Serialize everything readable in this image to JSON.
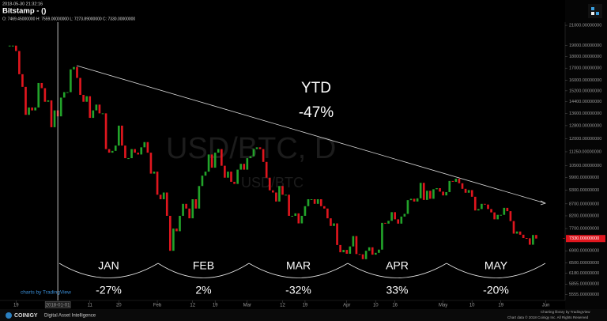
{
  "chart_data": {
    "type": "candlestick",
    "timestamp": "2018-05-30 21:32:16",
    "title": "Bitstamp -  ()",
    "ohlc_line": "O: 7469.45000000 H: 7559.00000000 L: 7273.89000000 C: 7330.00000000",
    "watermark": "USD/BTC, D",
    "watermark_small": "USD/BTC",
    "ytd_label": "YTD",
    "ytd_value": "-47%",
    "months": [
      {
        "label": "JAN",
        "change": "-27%"
      },
      {
        "label": "FEB",
        "change": "2%"
      },
      {
        "label": "MAR",
        "change": "-32%"
      },
      {
        "label": "APR",
        "change": "33%"
      },
      {
        "label": "MAY",
        "change": "-20%"
      }
    ],
    "last_price": {
      "value": 7330,
      "label": "7330.00000000"
    },
    "crosshair": {
      "value": 15,
      "label": "2018-01-01"
    },
    "up_color": "#22a32a",
    "down_color": "#e0161e",
    "log_scale": true,
    "values": [
      19000,
      19000,
      18500,
      16500,
      15500,
      13500,
      14000,
      13800,
      14000,
      15800,
      15400,
      14400,
      14500,
      12700,
      13800,
      13400,
      14700,
      15100,
      15100,
      16900,
      17100,
      16200,
      14900,
      14400,
      14800,
      13300,
      13800,
      14200,
      13600,
      13600,
      11400,
      11200,
      11300,
      11600,
      12800,
      11600,
      10900,
      10900,
      11400,
      11200,
      11100,
      11500,
      11800,
      11200,
      10100,
      10200,
      9100,
      8900,
      9200,
      8200,
      6900,
      7700,
      7600,
      8200,
      8700,
      8500,
      8100,
      8900,
      8500,
      9500,
      10000,
      10200,
      11100,
      10400,
      11200,
      11400,
      10500,
      9900,
      10200,
      9700,
      9600,
      10300,
      10600,
      10300,
      10900,
      11000,
      11400,
      11500,
      11400,
      10700,
      9900,
      9300,
      9200,
      8800,
      9500,
      9100,
      9100,
      8200,
      8200,
      8300,
      7900,
      8200,
      8600,
      8900,
      8900,
      8700,
      8900,
      8600,
      8500,
      8100,
      7800,
      7900,
      7100,
      6850,
      6930,
      6800,
      7050,
      7420,
      6790,
      6780,
      6620,
      6900,
      7020,
      6770,
      6830,
      6940,
      7920,
      7890,
      8000,
      8350,
      8060,
      7890,
      8170,
      8280,
      8860,
      8920,
      8800,
      8940,
      9650,
      8870,
      9280,
      8920,
      9350,
      9400,
      9240,
      9070,
      9220,
      9740,
      9700,
      9850,
      9630,
      9370,
      9190,
      9310,
      9010,
      8420,
      8480,
      8700,
      8670,
      8480,
      8340,
      8060,
      8240,
      8240,
      8530,
      8390,
      7990,
      7510,
      7590,
      7470,
      7350,
      7340,
      7110,
      7460,
      7330
    ],
    "xlim": [
      -3,
      173
    ],
    "xticks": [
      {
        "value": 2,
        "label": "19"
      },
      {
        "value": 25,
        "label": "11"
      },
      {
        "value": 34,
        "label": "20"
      },
      {
        "value": 46,
        "label": "Feb"
      },
      {
        "value": 57,
        "label": "12"
      },
      {
        "value": 64,
        "label": "19"
      },
      {
        "value": 74,
        "label": "Mar"
      },
      {
        "value": 85,
        "label": "12"
      },
      {
        "value": 92,
        "label": "19"
      },
      {
        "value": 105,
        "label": "Apr"
      },
      {
        "value": 114,
        "label": "10"
      },
      {
        "value": 120,
        "label": "16"
      },
      {
        "value": 135,
        "label": "May"
      },
      {
        "value": 144,
        "label": "10"
      },
      {
        "value": 153,
        "label": "19"
      },
      {
        "value": 167,
        "label": "Jun"
      }
    ],
    "ylim": [
      5400,
      23800
    ],
    "yticks": [
      {
        "value": 21000,
        "label": "21000.00000000"
      },
      {
        "value": 19000,
        "label": "19000.00000000"
      },
      {
        "value": 18000,
        "label": "18000.00000000"
      },
      {
        "value": 17000,
        "label": "17000.00000000"
      },
      {
        "value": 16000,
        "label": "16000.00000000"
      },
      {
        "value": 15200,
        "label": "15200.00000000"
      },
      {
        "value": 14400,
        "label": "14400.00000000"
      },
      {
        "value": 13600,
        "label": "13600.00000000"
      },
      {
        "value": 12800,
        "label": "12800.00000000"
      },
      {
        "value": 12000,
        "label": "12000.00000000"
      },
      {
        "value": 11250,
        "label": "11250.00000000"
      },
      {
        "value": 10500,
        "label": "10500.00000000"
      },
      {
        "value": 9900,
        "label": "9900.00000000"
      },
      {
        "value": 9300,
        "label": "9300.00000000"
      },
      {
        "value": 8700,
        "label": "8700.00000000"
      },
      {
        "value": 8200,
        "label": "8200.00000000"
      },
      {
        "value": 7700,
        "label": "7700.00000000"
      },
      {
        "value": 6900,
        "label": "6900.00000000"
      },
      {
        "value": 6500,
        "label": "6500.00000000"
      },
      {
        "value": 6180,
        "label": "6180.00000000"
      },
      {
        "value": 5855,
        "label": "5855.00000000"
      },
      {
        "value": 5555,
        "label": "5555.00000000"
      }
    ],
    "footer_left": "charts by TradingView",
    "brand": "COINIGY",
    "brand_tagline": "Digital Asset Intelligence",
    "footer_right_1": "Charting library by TradingView",
    "footer_right_2": "Chart data © 2018 Coinigy Inc. All Rights Reserved"
  }
}
